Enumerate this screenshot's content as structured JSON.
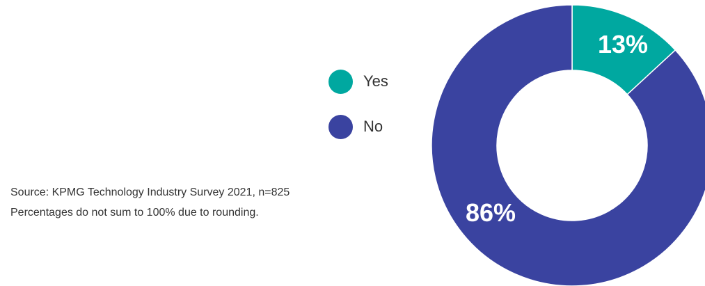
{
  "chart_data": {
    "type": "pie",
    "donut": true,
    "categories": [
      "Yes",
      "No"
    ],
    "values": [
      13,
      86
    ],
    "labels": [
      "13%",
      "86%"
    ],
    "colors": [
      "#00a8a0",
      "#3a43a0"
    ]
  },
  "legend": {
    "items": [
      {
        "label": "Yes",
        "color": "#00a8a0"
      },
      {
        "label": "No",
        "color": "#3a43a0"
      }
    ]
  },
  "source": {
    "line1": "Source: KPMG Technology Industry Survey 2021, n=825",
    "line2": "Percentages do not sum to 100% due to rounding."
  }
}
